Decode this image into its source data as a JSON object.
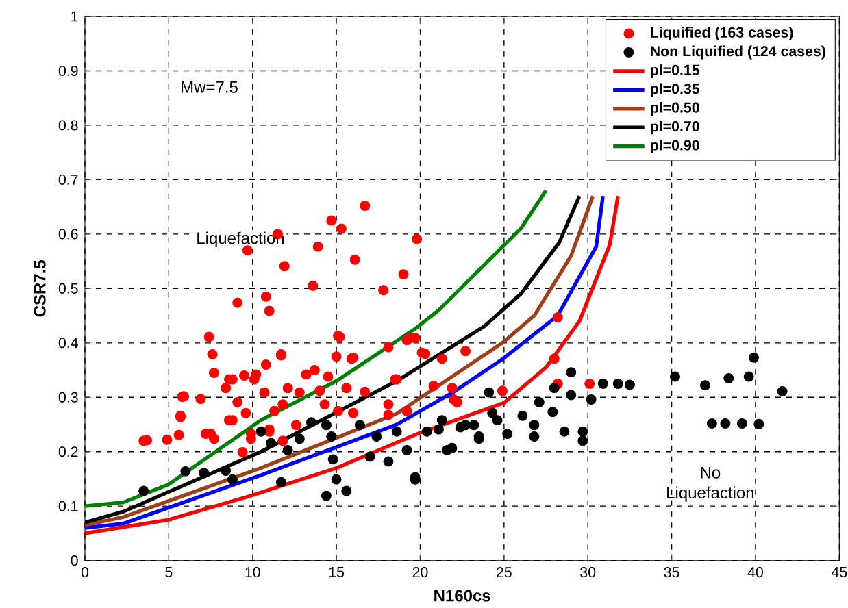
{
  "chart_data": {
    "type": "scatter",
    "xlabel": "N160cs",
    "ylabel": "CSR7.5",
    "xlim": [
      0,
      45
    ],
    "ylim": [
      0,
      1
    ],
    "xticks": [
      0,
      5,
      10,
      15,
      20,
      25,
      30,
      35,
      40,
      45
    ],
    "yticks": [
      0,
      0.1,
      0.2,
      0.3,
      0.4,
      0.5,
      0.6,
      0.7,
      0.8,
      0.9,
      1
    ],
    "grid": true,
    "legend": "top right",
    "marker": "circle",
    "annotations": [
      "Mw=7.5",
      "Liquefaction",
      "No Liquefaction"
    ],
    "series": [
      {
        "name": "Liquified (163 cases)",
        "color": "#ff0000",
        "x": [
          16.7,
          14.7,
          15.3,
          11.5,
          19.8,
          13.9,
          9.7,
          16.1,
          11.9,
          19.0,
          13.6,
          17.8,
          10.8,
          9.1,
          11.0,
          7.4,
          15.2,
          7.6,
          11.7,
          16.0,
          15.0,
          19.4,
          20.1,
          10.8,
          7.7,
          8.6,
          9.5,
          10.1,
          13.2,
          13.7,
          14.5,
          8.4,
          5.9,
          6.9,
          10.7,
          12.1,
          12.8,
          14.0,
          15.6,
          16.7,
          18.5,
          5.7,
          9.1,
          9.6,
          11.3,
          11.8,
          8.8,
          7.2,
          5.6,
          3.7,
          4.9,
          7.7,
          9.9,
          11.0,
          12.6,
          3.5,
          5.8,
          5.7,
          15.1,
          11.7,
          15.9,
          18.1,
          19.2,
          21.9,
          22.2,
          18.1,
          18.6,
          20.8,
          19.2,
          18.1,
          15.1,
          16.0,
          14.3,
          11.0,
          11.8,
          9.4,
          8.6,
          9.9,
          7.5,
          10.2,
          8.8,
          19.7,
          20.3,
          22.7,
          21.3,
          22.0,
          24.9,
          28.0,
          28.2,
          28.2,
          30.1
        ],
        "values": [
          0.652,
          0.625,
          0.61,
          0.6,
          0.591,
          0.577,
          0.57,
          0.553,
          0.541,
          0.526,
          0.505,
          0.497,
          0.485,
          0.474,
          0.459,
          0.411,
          0.411,
          0.379,
          0.379,
          0.373,
          0.375,
          0.409,
          0.382,
          0.36,
          0.345,
          0.333,
          0.34,
          0.333,
          0.342,
          0.35,
          0.338,
          0.317,
          0.302,
          0.297,
          0.309,
          0.317,
          0.309,
          0.312,
          0.317,
          0.31,
          0.333,
          0.266,
          0.291,
          0.271,
          0.275,
          0.287,
          0.258,
          0.233,
          0.231,
          0.221,
          0.222,
          0.224,
          0.224,
          0.241,
          0.249,
          0.22,
          0.301,
          0.264,
          0.413,
          0.377,
          0.371,
          0.392,
          0.405,
          0.317,
          0.291,
          0.287,
          0.333,
          0.321,
          0.275,
          0.268,
          0.275,
          0.271,
          0.287,
          0.237,
          0.22,
          0.199,
          0.258,
          0.233,
          0.233,
          0.342,
          0.333,
          0.409,
          0.38,
          0.385,
          0.371,
          0.296,
          0.312,
          0.371,
          0.447,
          0.325,
          0.325
        ]
      },
      {
        "name": "Non Liquified (124 cases)",
        "color": "#000000",
        "x": [
          3.5,
          6.0,
          7.1,
          8.4,
          8.8,
          10.5,
          11.1,
          11.7,
          12.1,
          12.8,
          13.5,
          14.4,
          14.7,
          15.0,
          14.4,
          15.6,
          14.8,
          16.4,
          17.0,
          18.1,
          17.4,
          18.6,
          19.2,
          19.7,
          20.4,
          21.3,
          21.6,
          22.4,
          23.2,
          24.1,
          24.6,
          23.5,
          29.0,
          28.0,
          29.0,
          27.1,
          24.3,
          26.1,
          26.8,
          27.9,
          30.2,
          28.6,
          29.7,
          29.7,
          26.8,
          25.2,
          23.5,
          21.9,
          22.7,
          21.1,
          19.7,
          30.9,
          31.8,
          32.5,
          35.2,
          37.0,
          38.4,
          39.6,
          39.9,
          41.6,
          37.4,
          38.2,
          39.2,
          40.2
        ],
        "values": [
          0.128,
          0.164,
          0.161,
          0.165,
          0.149,
          0.237,
          0.216,
          0.144,
          0.203,
          0.224,
          0.254,
          0.249,
          0.228,
          0.149,
          0.119,
          0.128,
          0.186,
          0.249,
          0.191,
          0.182,
          0.228,
          0.237,
          0.203,
          0.149,
          0.237,
          0.258,
          0.203,
          0.245,
          0.249,
          0.309,
          0.258,
          0.224,
          0.346,
          0.317,
          0.304,
          0.291,
          0.271,
          0.266,
          0.249,
          0.273,
          0.296,
          0.237,
          0.237,
          0.22,
          0.228,
          0.233,
          0.228,
          0.207,
          0.249,
          0.241,
          0.153,
          0.325,
          0.325,
          0.323,
          0.338,
          0.322,
          0.335,
          0.338,
          0.373,
          0.311,
          0.252,
          0.252,
          0.252,
          0.251
        ]
      },
      {
        "type": "line",
        "marker": "none",
        "name": "pl=0.15",
        "color": "#ff0000",
        "x": [
          0,
          5,
          10,
          15,
          20,
          25,
          27.5,
          29.5,
          31.3,
          31.8
        ],
        "values": [
          0.05,
          0.075,
          0.12,
          0.17,
          0.235,
          0.29,
          0.355,
          0.44,
          0.58,
          0.67
        ]
      },
      {
        "type": "line",
        "marker": "none",
        "name": "pl=0.35",
        "color": "#0000ff",
        "x": [
          0,
          2.3,
          10.5,
          18.6,
          22,
          24.9,
          28.2,
          30.5,
          30.9
        ],
        "values": [
          0.06,
          0.068,
          0.157,
          0.25,
          0.31,
          0.37,
          0.45,
          0.577,
          0.67
        ]
      },
      {
        "type": "line",
        "marker": "none",
        "name": "pl=0.50",
        "color": "#a0401a",
        "x": [
          0,
          2.3,
          10.5,
          18.6,
          24.9,
          26.8,
          29,
          30.3
        ],
        "values": [
          0.065,
          0.08,
          0.17,
          0.27,
          0.4,
          0.45,
          0.56,
          0.67
        ]
      },
      {
        "type": "line",
        "marker": "none",
        "name": "pl=0.70",
        "color": "#000000",
        "x": [
          0,
          2.3,
          10.5,
          18.6,
          23.8,
          26,
          28.3,
          29.5
        ],
        "values": [
          0.07,
          0.09,
          0.2,
          0.33,
          0.43,
          0.49,
          0.585,
          0.67
        ]
      },
      {
        "type": "line",
        "marker": "none",
        "name": "pl=0.90",
        "color": "#008000",
        "x": [
          0,
          2.3,
          5,
          10.5,
          15,
          19.7,
          21.1,
          26,
          27.5
        ],
        "values": [
          0.1,
          0.107,
          0.14,
          0.258,
          0.33,
          0.426,
          0.46,
          0.61,
          0.68
        ]
      }
    ]
  }
}
